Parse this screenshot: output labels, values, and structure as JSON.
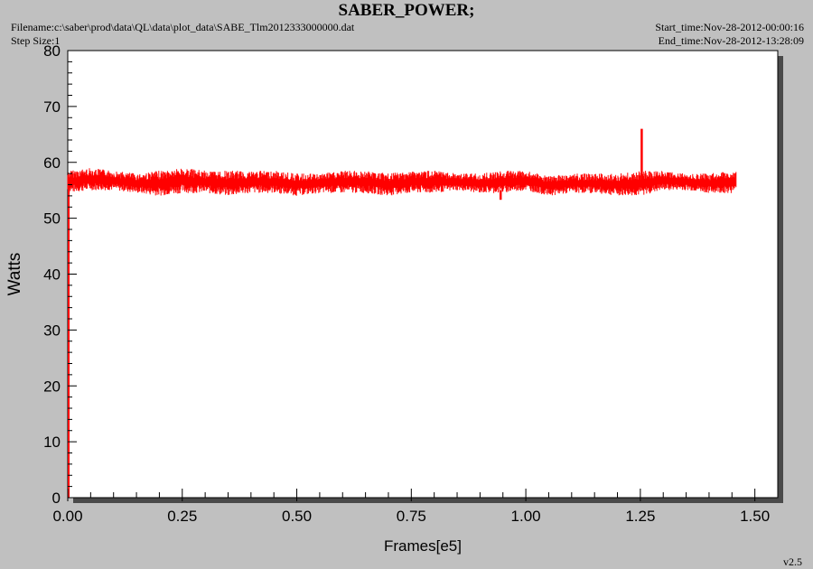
{
  "header": {
    "title": "SABER_POWER;",
    "filename": "Filename:c:\\saber\\prod\\data\\QL\\data\\plot_data\\SABE_Tlm2012333000000.dat",
    "step_size": "Step Size:1",
    "start_time": "Start_time:Nov-28-2012-00:00:16",
    "end_time": "End_time:Nov-28-2012-13:28:09",
    "version": "v2.5"
  },
  "colors": {
    "background": "#c0c0c0",
    "plot_area": "#ffffff",
    "series": "#ff0000",
    "axis": "#000000"
  },
  "chart_data": {
    "type": "line",
    "title": "SABER_POWER;",
    "xlabel": "Frames[e5]",
    "ylabel": "Watts",
    "xlim": [
      0.0,
      1.55
    ],
    "ylim": [
      0,
      80
    ],
    "x_ticks": [
      "0.00",
      "0.25",
      "0.50",
      "0.75",
      "1.00",
      "1.25",
      "1.50"
    ],
    "y_ticks": [
      "0",
      "10",
      "20",
      "30",
      "40",
      "50",
      "60",
      "70",
      "80"
    ],
    "grid": false,
    "series": [
      {
        "color": "#ff0000",
        "x_range": [
          0.0,
          1.46
        ],
        "envelope_x": [
          0.0,
          0.05,
          0.1,
          0.15,
          0.2,
          0.25,
          0.3,
          0.35,
          0.4,
          0.45,
          0.5,
          0.55,
          0.6,
          0.65,
          0.7,
          0.75,
          0.8,
          0.85,
          0.9,
          0.95,
          1.0,
          1.05,
          1.1,
          1.15,
          1.2,
          1.25,
          1.3,
          1.35,
          1.4,
          1.45
        ],
        "envelope_min": [
          54.5,
          55.0,
          55.0,
          54.5,
          54.0,
          54.5,
          54.5,
          54.0,
          54.5,
          54.5,
          54.0,
          54.5,
          54.5,
          54.5,
          54.0,
          54.5,
          54.5,
          55.0,
          54.5,
          54.5,
          55.0,
          54.0,
          54.5,
          54.5,
          54.0,
          54.0,
          55.0,
          55.0,
          54.5,
          54.5
        ],
        "envelope_max": [
          58.5,
          59.0,
          58.5,
          58.0,
          58.5,
          59.0,
          58.5,
          58.5,
          58.5,
          58.5,
          58.0,
          58.0,
          58.5,
          58.5,
          58.0,
          58.5,
          58.5,
          58.0,
          58.0,
          58.5,
          58.5,
          57.5,
          58.0,
          58.0,
          58.0,
          58.5,
          58.5,
          58.0,
          58.0,
          58.5
        ],
        "spikes": [
          {
            "x": 1.253,
            "y": 66.0
          },
          {
            "x": 0.945,
            "y": 53.3
          }
        ]
      }
    ]
  }
}
